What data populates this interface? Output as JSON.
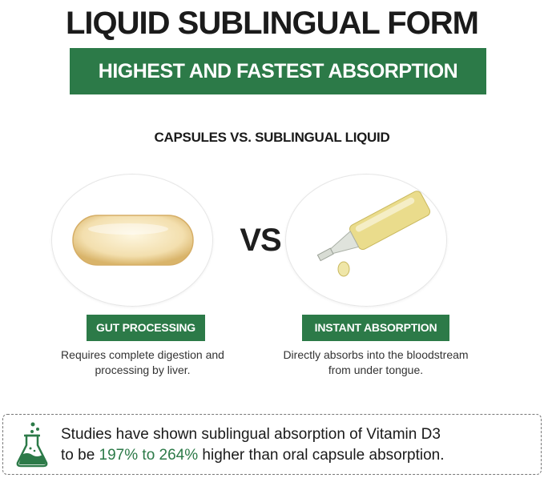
{
  "title": "LIQUID SUBLINGUAL FORM",
  "banner": "HIGHEST AND FASTEST ABSORPTION",
  "subtitle": "CAPSULES VS. SUBLINGUAL LIQUID",
  "vs": "VS",
  "left": {
    "image": "softgel-capsule",
    "badge": "GUT PROCESSING",
    "desc_line1": "Requires complete digestion and",
    "desc_line2": "processing by liver."
  },
  "right": {
    "image": "liquid-dropper",
    "badge": "INSTANT ABSORPTION",
    "desc_line1": "Directly absorbs into the bloodstream",
    "desc_line2": "from under tongue."
  },
  "study": {
    "icon": "flask-icon",
    "line1": "Studies have shown sublingual absorption of Vitamin D3",
    "line2_pre": "to be ",
    "line2_highlight": "197% to 264%",
    "line2_post": " higher than oral capsule absorption."
  },
  "colors": {
    "brand_green": "#2c7a48",
    "capsule": "#f3deb0",
    "liquid": "#e8d98a"
  }
}
